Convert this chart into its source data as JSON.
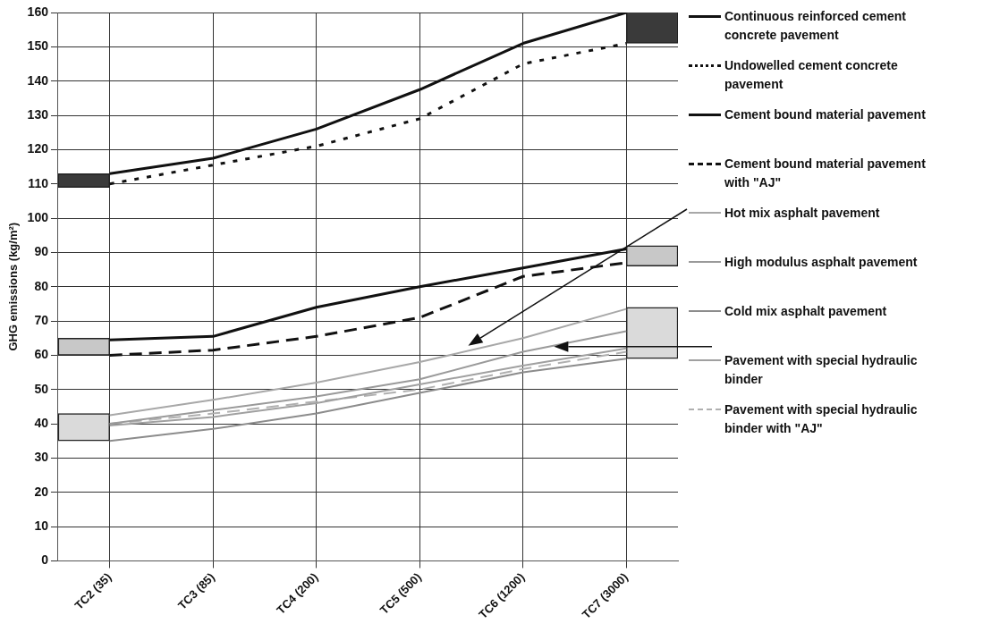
{
  "chart_data": {
    "type": "line",
    "ylabel": "GHG emissions (kg/m²)",
    "categories": [
      "TC2 (35)",
      "TC3 (85)",
      "TC4 (200)",
      "TC5 (500)",
      "TC6 (1200)",
      "TC7 (3000)"
    ],
    "ylim": [
      0,
      160
    ],
    "yticks": [
      0,
      10,
      20,
      30,
      40,
      50,
      60,
      70,
      80,
      90,
      100,
      110,
      120,
      130,
      140,
      150,
      160
    ],
    "grid": true,
    "legend": "right",
    "marker": "none",
    "series": [
      {
        "name": "Continuous reinforced cement concrete pavement",
        "color": "#111111",
        "line_style": "solid",
        "values": [
          113,
          117.5,
          126,
          137.5,
          151,
          160
        ]
      },
      {
        "name": "Undowelled cement concrete pavement",
        "color": "#111111",
        "line_style": "dotted",
        "values": [
          110,
          115.5,
          121,
          129,
          145,
          151
        ]
      },
      {
        "name": "Cement bound material pavement",
        "color": "#111111",
        "line_style": "solid",
        "values": [
          64.5,
          65.5,
          74,
          80,
          85.5,
          91
        ]
      },
      {
        "name": "Cement bound material pavement with \"AJ\"",
        "color": "#111111",
        "line_style": "dashed",
        "values": [
          60,
          61.5,
          65.5,
          71,
          83,
          87
        ]
      },
      {
        "name": "Hot mix asphalt pavement",
        "color": "#a8a8a8",
        "line_style": "solid",
        "values": [
          42.5,
          47,
          52,
          58,
          65,
          73.5
        ]
      },
      {
        "name": "High modulus asphalt pavement",
        "color": "#9a9a9a",
        "line_style": "solid",
        "values": [
          40,
          44,
          48,
          53,
          61,
          67
        ]
      },
      {
        "name": "Cold mix asphalt pavement",
        "color": "#8c8c8c",
        "line_style": "solid",
        "values": [
          35,
          38.5,
          43,
          49,
          55,
          59
        ]
      },
      {
        "name": "Pavement with special hydraulic binder",
        "color": "#a0a0a0",
        "line_style": "solid",
        "values": [
          39.5,
          42,
          46,
          51.5,
          57,
          62
        ]
      },
      {
        "name": "Pavement with special hydraulic binder with \"AJ\"",
        "color": "#b0b0b0",
        "line_style": "dashed",
        "values": [
          40,
          43,
          46.5,
          50,
          56,
          61
        ]
      },
      {
        "type": "bar",
        "color": "#3a3a3a",
        "base": [
          109,
          null,
          null,
          null,
          null,
          151
        ],
        "values": [
          4,
          null,
          null,
          null,
          null,
          10
        ]
      },
      {
        "type": "bar",
        "color": "#c8c8c8",
        "base": [
          60,
          null,
          null,
          null,
          null,
          86
        ],
        "values": [
          5,
          null,
          null,
          null,
          null,
          6
        ]
      },
      {
        "type": "bar",
        "color": "#dadada",
        "base": [
          35,
          null,
          null,
          null,
          null,
          59
        ],
        "values": [
          8,
          null,
          null,
          null,
          null,
          15
        ]
      }
    ]
  }
}
